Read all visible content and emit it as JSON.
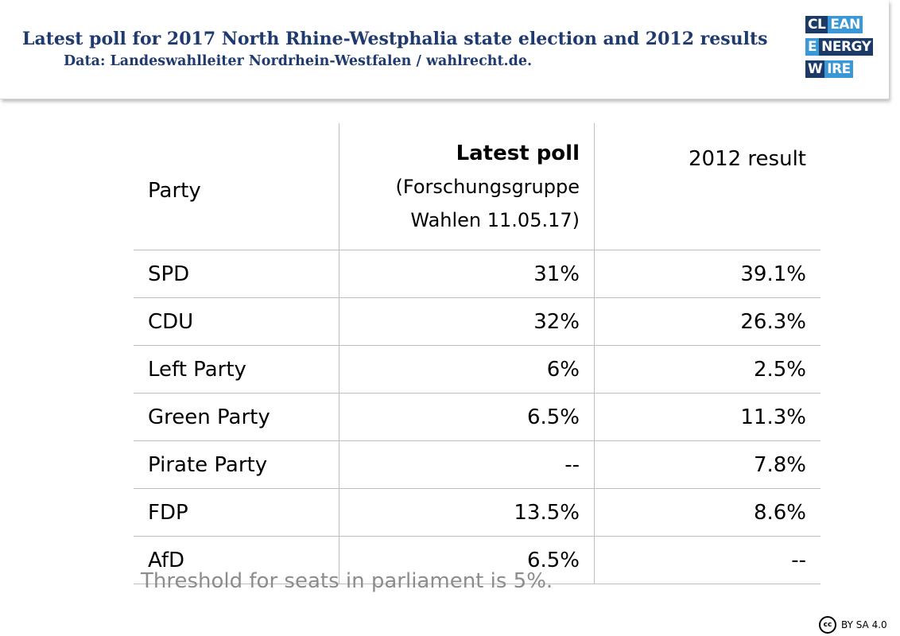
{
  "header": {
    "title": "Latest poll for 2017 North Rhine-Westphalia state election and 2012 results",
    "subtitle": "Data: Landeswahlleiter Nordrhein-Westfalen / wahlrecht.de."
  },
  "logo": {
    "line1_a": "CL",
    "line1_b": "EAN",
    "line2_a": "E",
    "line2_b": "NERGY",
    "line3_a": "W",
    "line3_b": "IRE"
  },
  "chart_data": {
    "type": "table",
    "columns": [
      "Party",
      "Latest poll",
      "(Forschungsgruppe",
      "Wahlen 11.05.17)",
      "2012 result"
    ],
    "header": {
      "party": "Party",
      "poll_title": "Latest poll",
      "poll_source_line1": "(Forschungsgruppe",
      "poll_source_line2": "Wahlen 11.05.17)",
      "result_2012": "2012 result"
    },
    "rows": [
      {
        "party": "SPD",
        "poll": "31%",
        "result_2012": "39.1%"
      },
      {
        "party": "CDU",
        "poll": "32%",
        "result_2012": "26.3%"
      },
      {
        "party": "Left Party",
        "poll": "6%",
        "result_2012": "2.5%"
      },
      {
        "party": "Green Party",
        "poll": "6.5%",
        "result_2012": "11.3%"
      },
      {
        "party": "Pirate Party",
        "poll": "--",
        "result_2012": "7.8%"
      },
      {
        "party": "FDP",
        "poll": "13.5%",
        "result_2012": "8.6%"
      },
      {
        "party": "AfD",
        "poll": "6.5%",
        "result_2012": "--"
      }
    ]
  },
  "note": "Threshold for seats in parliament is 5%.",
  "license": {
    "icon": "cc",
    "text": "BY SA 4.0"
  },
  "colors": {
    "title": "#1f3a6e",
    "logo_dark": "#1b3a66",
    "logo_light": "#3a98d6",
    "note": "#8c8c8c"
  }
}
